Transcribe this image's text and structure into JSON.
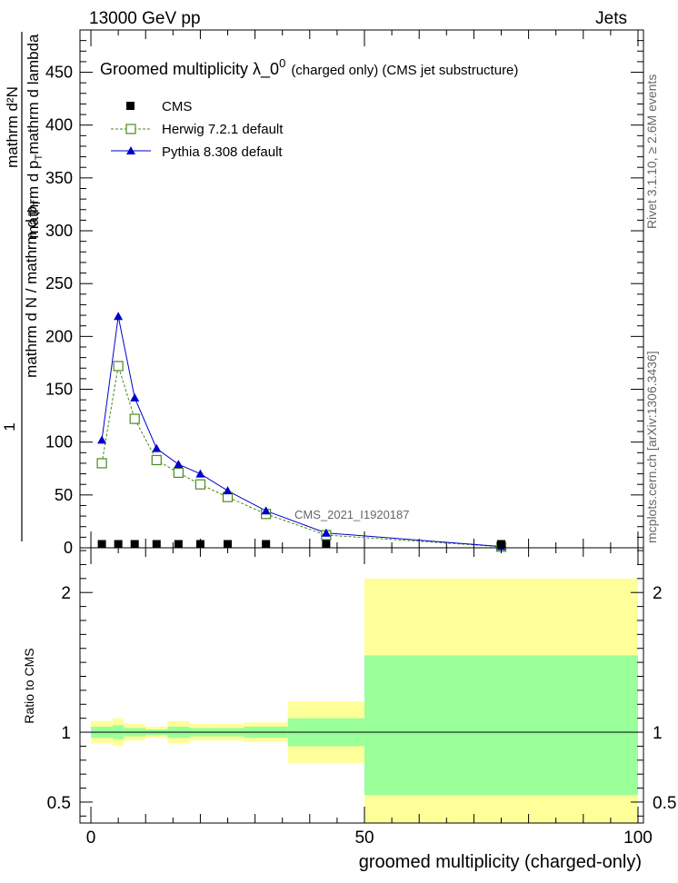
{
  "header": {
    "left": "13000 GeV pp",
    "right": "Jets"
  },
  "side_labels": {
    "rivet": "Rivet 3.1.10, ≥ 2.6M events",
    "mcplots": "mcplots.cern.ch [arXiv:1306.3436]"
  },
  "watermark": "CMS_2021_I1920187",
  "chart_data": [
    {
      "type": "line",
      "title_main": "Groomed multiplicity  λ_0",
      "title_sup": "0",
      "title_paren": "(charged only) (CMS jet substructure)",
      "ylabel_numer": "mathrm d²N",
      "ylabel_numer_sub": "mathrm d p",
      "ylabel_numer_sub2": "T",
      "ylabel_numer_sub3": "mathrm d lambda",
      "ylabel_prefix": "1",
      "ylabel_denom": "mathrm d N / mathrm d p",
      "ylabel_denom_sub": "T",
      "ylim": [
        0,
        490
      ],
      "yticks": [
        0,
        50,
        100,
        150,
        200,
        250,
        300,
        350,
        400,
        450
      ],
      "xlim": [
        -2,
        101
      ],
      "legend_position": "top-left",
      "series": [
        {
          "name": "CMS",
          "color": "#000000",
          "marker": "square-filled",
          "x": [
            2,
            5,
            8,
            12,
            16,
            20,
            25,
            32,
            43,
            75
          ],
          "y": [
            0.6,
            0.6,
            0.6,
            0.6,
            0.6,
            0.6,
            0.6,
            0.6,
            0.4,
            0.1
          ]
        },
        {
          "name": "Herwig 7.2.1 default",
          "color": "#4a8a1c",
          "marker": "square-open",
          "line": "dashed",
          "x": [
            2,
            5,
            8,
            12,
            16,
            20,
            25,
            32,
            43,
            75
          ],
          "y": [
            80,
            172,
            122,
            83,
            71,
            60,
            48,
            32,
            12,
            1
          ]
        },
        {
          "name": "Pythia 8.308 default",
          "color": "#0000cc",
          "marker": "triangle-filled",
          "line": "solid",
          "x": [
            2,
            5,
            8,
            12,
            16,
            20,
            25,
            32,
            43,
            75
          ],
          "y": [
            102,
            219,
            142,
            94,
            79,
            70,
            54,
            35,
            14,
            1.2
          ]
        }
      ]
    },
    {
      "type": "area",
      "ylabel": "Ratio to CMS",
      "xlabel": "groomed multiplicity (charged-only)",
      "xlim": [
        -2,
        101
      ],
      "xticks": [
        0,
        50,
        100
      ],
      "ylim": [
        0.35,
        2.32
      ],
      "yticks_labeled": [
        0.5,
        1,
        2
      ],
      "reference_line": 1,
      "band_colors": {
        "inner": "#99ff99",
        "outer": "#ffff99"
      },
      "bins": [
        {
          "x0": 0,
          "x1": 4,
          "inner": [
            0.96,
            1.04
          ],
          "outer": [
            0.92,
            1.08
          ]
        },
        {
          "x0": 4,
          "x1": 6,
          "inner": [
            0.95,
            1.05
          ],
          "outer": [
            0.9,
            1.1
          ]
        },
        {
          "x0": 6,
          "x1": 10,
          "inner": [
            0.97,
            1.03
          ],
          "outer": [
            0.94,
            1.06
          ]
        },
        {
          "x0": 10,
          "x1": 14,
          "inner": [
            0.98,
            1.02
          ],
          "outer": [
            0.96,
            1.04
          ]
        },
        {
          "x0": 14,
          "x1": 18,
          "inner": [
            0.96,
            1.04
          ],
          "outer": [
            0.92,
            1.08
          ]
        },
        {
          "x0": 18,
          "x1": 22,
          "inner": [
            0.97,
            1.03
          ],
          "outer": [
            0.94,
            1.06
          ]
        },
        {
          "x0": 22,
          "x1": 28,
          "inner": [
            0.97,
            1.03
          ],
          "outer": [
            0.94,
            1.06
          ]
        },
        {
          "x0": 28,
          "x1": 36,
          "inner": [
            0.96,
            1.04
          ],
          "outer": [
            0.93,
            1.07
          ]
        },
        {
          "x0": 36,
          "x1": 50,
          "inner": [
            0.9,
            1.1
          ],
          "outer": [
            0.78,
            1.22
          ]
        },
        {
          "x0": 50,
          "x1": 100,
          "inner": [
            0.55,
            1.55
          ],
          "outer": [
            0.3,
            2.1
          ]
        }
      ]
    }
  ]
}
